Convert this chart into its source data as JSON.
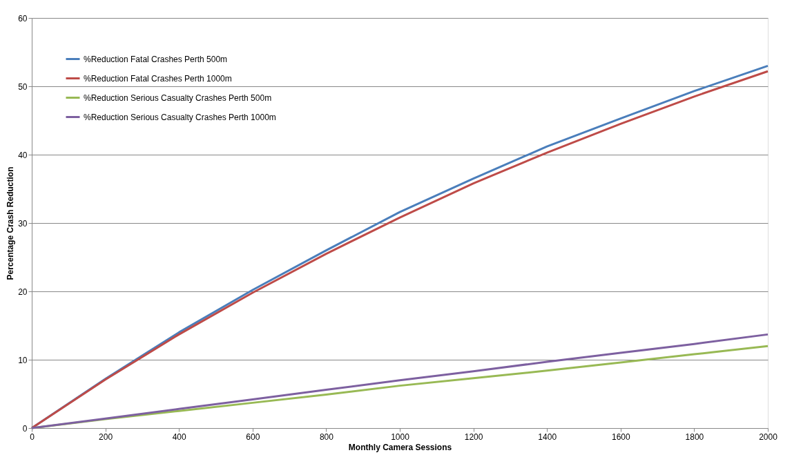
{
  "chart_data": {
    "type": "line",
    "xlabel": "Monthly Camera Sessions",
    "ylabel": "Percentage Crash Reduction",
    "x": [
      0,
      200,
      400,
      600,
      800,
      1000,
      1200,
      1400,
      1600,
      1800,
      2000
    ],
    "series": [
      {
        "name": "%Reduction Fatal Crashes Perth 500m",
        "color": "#4a7ebb",
        "values": [
          0,
          7.2,
          14.0,
          20.2,
          26.0,
          31.6,
          36.5,
          41.2,
          45.3,
          49.3,
          53.0
        ]
      },
      {
        "name": "%Reduction Fatal Crashes Perth 1000m",
        "color": "#be4b48",
        "values": [
          0,
          7.1,
          13.7,
          19.8,
          25.5,
          30.8,
          35.8,
          40.3,
          44.5,
          48.5,
          52.2
        ]
      },
      {
        "name": "%Reduction Serious Casualty Crashes Perth 500m",
        "color": "#98b954",
        "values": [
          0,
          1.3,
          2.5,
          3.7,
          4.9,
          6.2,
          7.3,
          8.4,
          9.6,
          10.8,
          12.0
        ]
      },
      {
        "name": "%Reduction Serious Casualty Crashes Perth 1000m",
        "color": "#7d60a0",
        "values": [
          0,
          1.4,
          2.8,
          4.2,
          5.6,
          7.0,
          8.3,
          9.7,
          11.0,
          12.3,
          13.7
        ]
      }
    ],
    "xlim": [
      0,
      2000
    ],
    "xticks": [
      0,
      200,
      400,
      600,
      800,
      1000,
      1200,
      1400,
      1600,
      1800,
      2000
    ],
    "ylim": [
      0,
      60
    ],
    "yticks": [
      0,
      10,
      20,
      30,
      40,
      50,
      60
    ],
    "grid": "y",
    "legend": "top left",
    "marker": "none",
    "line_style": "solid"
  }
}
